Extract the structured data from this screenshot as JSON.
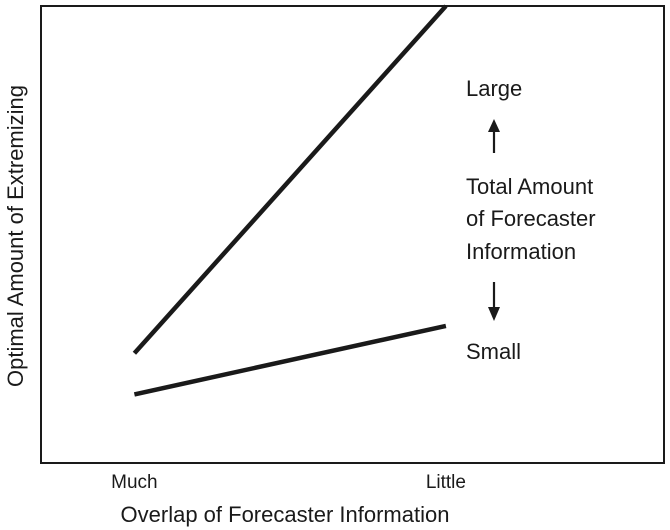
{
  "chart_data": {
    "type": "line",
    "title": "",
    "xlabel": "Overlap of Forecaster Information",
    "ylabel": "Optimal Amount of Extremizing",
    "categories": [
      "Much",
      "Little"
    ],
    "x": [
      0,
      1
    ],
    "xlim": [
      -0.3,
      1.7
    ],
    "ylim": [
      0,
      1
    ],
    "grid": false,
    "legend": "none",
    "series": [
      {
        "values": [
          0.24,
          1.0
        ],
        "color": "#1a1a1a"
      },
      {
        "values": [
          0.15,
          0.3
        ],
        "color": "#1a1a1a"
      }
    ],
    "annotations": {
      "large": "Large",
      "small": "Small",
      "middle": [
        "Total Amount",
        "of Forecaster",
        "Information"
      ],
      "arrow_up": "up-arrow-icon",
      "arrow_down": "down-arrow-icon"
    }
  }
}
